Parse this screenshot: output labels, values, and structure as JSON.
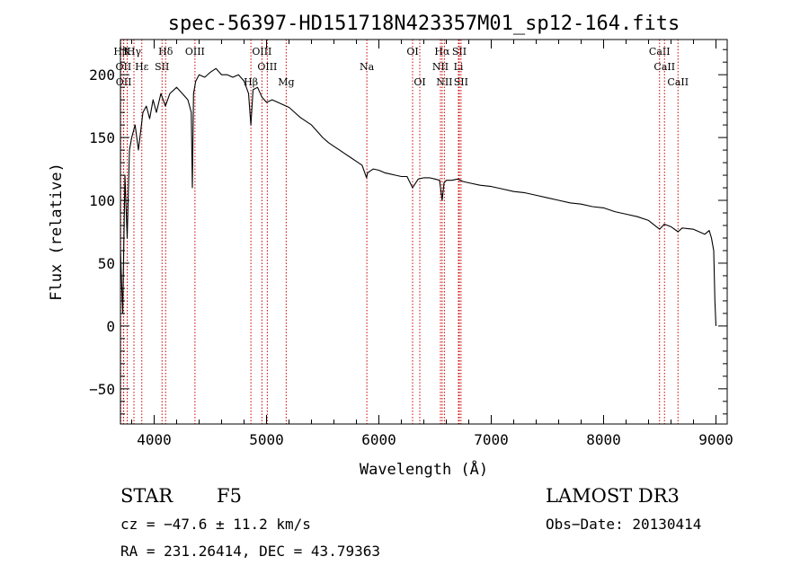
{
  "chart_data": {
    "type": "line",
    "title": "spec-56397-HD151718N423357M01_sp12-164.fits",
    "xlabel": "Wavelength (Å)",
    "ylabel": "Flux (relative)",
    "xlim": [
      3700,
      9100
    ],
    "ylim": [
      -78,
      228
    ],
    "xticks": [
      4000,
      5000,
      6000,
      7000,
      8000,
      9000
    ],
    "yticks": [
      -50,
      0,
      50,
      100,
      150,
      200
    ],
    "line_color": "#000000",
    "marker_color": "#cc0000",
    "series": [
      {
        "name": "flux",
        "x": [
          3700,
          3720,
          3740,
          3760,
          3780,
          3800,
          3830,
          3860,
          3900,
          3930,
          3960,
          3990,
          4020,
          4060,
          4100,
          4140,
          4200,
          4250,
          4300,
          4330,
          4340,
          4350,
          4370,
          4400,
          4450,
          4500,
          4550,
          4600,
          4650,
          4700,
          4750,
          4800,
          4840,
          4861,
          4880,
          4920,
          4960,
          5000,
          5050,
          5100,
          5150,
          5200,
          5250,
          5300,
          5350,
          5400,
          5450,
          5500,
          5550,
          5600,
          5650,
          5700,
          5750,
          5800,
          5850,
          5890,
          5900,
          5950,
          6000,
          6050,
          6100,
          6150,
          6200,
          6250,
          6300,
          6350,
          6400,
          6450,
          6500,
          6540,
          6563,
          6580,
          6600,
          6650,
          6700,
          6750,
          6800,
          6900,
          7000,
          7100,
          7200,
          7300,
          7400,
          7500,
          7600,
          7700,
          7800,
          7900,
          8000,
          8100,
          8200,
          8300,
          8400,
          8498,
          8540,
          8600,
          8662,
          8700,
          8800,
          8900,
          8940,
          8960,
          8980,
          8990,
          9000
        ],
        "values": [
          60,
          10,
          120,
          70,
          140,
          150,
          160,
          140,
          170,
          175,
          165,
          180,
          170,
          185,
          175,
          185,
          190,
          185,
          180,
          170,
          110,
          185,
          195,
          200,
          198,
          202,
          205,
          200,
          200,
          198,
          200,
          195,
          185,
          160,
          188,
          190,
          182,
          178,
          180,
          178,
          176,
          174,
          170,
          166,
          163,
          160,
          155,
          150,
          146,
          143,
          140,
          137,
          134,
          131,
          128,
          118,
          122,
          125,
          124,
          122,
          121,
          120,
          119,
          119,
          110,
          117,
          118,
          118,
          117,
          116,
          100,
          114,
          116,
          116,
          117,
          115,
          114,
          112,
          111,
          109,
          107,
          106,
          104,
          102,
          100,
          98,
          97,
          95,
          94,
          91,
          89,
          87,
          84,
          77,
          81,
          79,
          75,
          78,
          77,
          73,
          76,
          70,
          60,
          20,
          0
        ]
      }
    ],
    "lines": [
      {
        "label": "Hβ",
        "wavelength": 3703
      },
      {
        "label": "K",
        "wavelength": 3760
      },
      {
        "label": "Hγ",
        "wavelength": 3820
      },
      {
        "label": "OII",
        "wavelength": 3727
      },
      {
        "label": "OIII",
        "wavelength": 4363
      },
      {
        "label": "OII",
        "wavelength": 3729
      },
      {
        "label": "Hε",
        "wavelength": 3890
      },
      {
        "label": "SII",
        "wavelength": 4070
      },
      {
        "label": "Hδ",
        "wavelength": 4102
      },
      {
        "label": "OIII",
        "wavelength": 4959
      },
      {
        "label": "OIII",
        "wavelength": 5007
      },
      {
        "label": "Hβ",
        "wavelength": 4861
      },
      {
        "label": "Mg",
        "wavelength": 5175
      },
      {
        "label": "Na",
        "wavelength": 5893
      },
      {
        "label": "OI",
        "wavelength": 6300
      },
      {
        "label": "OI",
        "wavelength": 6364
      },
      {
        "label": "Hα",
        "wavelength": 6563
      },
      {
        "label": "SII",
        "wavelength": 6716
      },
      {
        "label": "NII",
        "wavelength": 6548
      },
      {
        "label": "Li",
        "wavelength": 6708
      },
      {
        "label": "NII",
        "wavelength": 6583
      },
      {
        "label": "SII",
        "wavelength": 6731
      },
      {
        "label": "CaII",
        "wavelength": 8498
      },
      {
        "label": "CaII",
        "wavelength": 8542
      },
      {
        "label": "CaII",
        "wavelength": 8662
      }
    ],
    "line_label_rows": [
      0,
      0,
      0,
      1,
      0,
      2,
      1,
      1,
      0,
      0,
      1,
      2,
      2,
      1,
      0,
      2,
      0,
      0,
      1,
      1,
      2,
      2,
      0,
      1,
      2
    ]
  },
  "info": {
    "object_class": "STAR",
    "subclass": "F5",
    "survey": "LAMOST DR3",
    "cz": "cz = −47.6 ± 11.2 km/s",
    "obs_date": "Obs−Date: 20130414",
    "coords": "RA = 231.26414, DEC =  43.79363"
  }
}
